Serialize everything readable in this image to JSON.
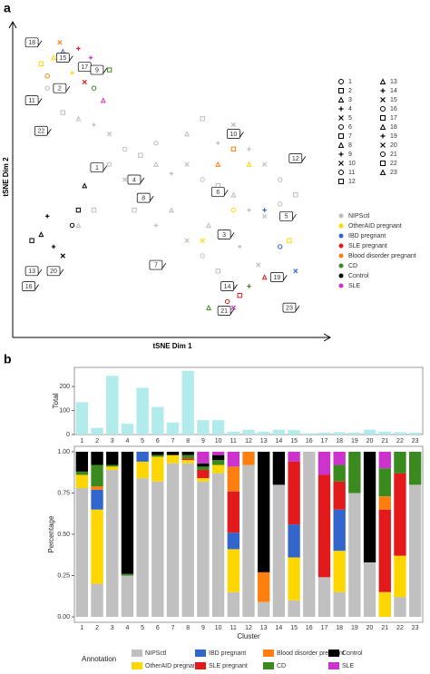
{
  "panels": [
    "a",
    "b"
  ],
  "chart_data": [
    {
      "type": "scatter",
      "xlabel": "tSNE Dim 1",
      "ylabel": "tSNE Dim 2",
      "xlim": [
        0,
        100
      ],
      "ylim": [
        0,
        100
      ],
      "cluster_legend": [
        "1",
        "2",
        "3",
        "4",
        "5",
        "6",
        "7",
        "8",
        "9",
        "10",
        "11",
        "12",
        "13",
        "14",
        "15",
        "16",
        "17",
        "18",
        "19",
        "20",
        "21",
        "22",
        "23"
      ],
      "series": [
        {
          "name": "NIPSctl",
          "color": "#bdbdbd",
          "x": [
            10,
            15,
            20,
            25,
            30,
            35,
            40,
            45,
            50,
            55,
            60,
            65,
            70,
            75,
            80,
            85,
            90,
            50,
            45,
            55,
            60,
            65,
            70,
            40,
            35,
            30,
            25,
            20,
            75,
            80,
            85,
            60,
            55,
            65,
            70,
            45,
            38,
            62,
            72,
            78
          ],
          "y": [
            80,
            72,
            70,
            68,
            65,
            60,
            58,
            55,
            52,
            55,
            50,
            48,
            45,
            40,
            38,
            42,
            45,
            40,
            35,
            30,
            25,
            20,
            15,
            45,
            50,
            55,
            40,
            35,
            60,
            55,
            50,
            70,
            65,
            62,
            68,
            62,
            40,
            35,
            28,
            22
          ]
        },
        {
          "name": "OtherAID pregnant",
          "color": "#ffd700",
          "x": [
            8,
            12,
            18,
            60,
            70,
            88,
            75
          ],
          "y": [
            88,
            90,
            85,
            30,
            40,
            30,
            55
          ]
        },
        {
          "name": "IBD pregnant",
          "color": "#3366cc",
          "x": [
            15,
            80,
            90,
            85
          ],
          "y": [
            92,
            40,
            20,
            28
          ]
        },
        {
          "name": "SLE pregnant",
          "color": "#e31a1c",
          "x": [
            20,
            22,
            68,
            72,
            80
          ],
          "y": [
            93,
            82,
            10,
            12,
            18
          ]
        },
        {
          "name": "Blood disorder pregnant",
          "color": "#ff7f0e",
          "x": [
            14,
            10,
            70,
            65
          ],
          "y": [
            95,
            84,
            60,
            55
          ]
        },
        {
          "name": "CD",
          "color": "#3a8a1f",
          "x": [
            25,
            30,
            62,
            75
          ],
          "y": [
            80,
            86,
            8,
            15
          ]
        },
        {
          "name": "Control",
          "color": "#000000",
          "x": [
            5,
            8,
            12,
            15,
            18,
            20,
            22,
            10
          ],
          "y": [
            30,
            32,
            28,
            25,
            35,
            40,
            48,
            38
          ]
        },
        {
          "name": "SLE",
          "color": "#cc33cc",
          "x": [
            28,
            24,
            70
          ],
          "y": [
            76,
            90,
            8
          ]
        }
      ],
      "annotations": [
        {
          "label": "18",
          "x": 5,
          "y": 95
        },
        {
          "label": "15",
          "x": 15,
          "y": 90
        },
        {
          "label": "17",
          "x": 22,
          "y": 87
        },
        {
          "label": "2",
          "x": 14,
          "y": 80
        },
        {
          "label": "11",
          "x": 5,
          "y": 76
        },
        {
          "label": "22",
          "x": 8,
          "y": 66
        },
        {
          "label": "9",
          "x": 26,
          "y": 86
        },
        {
          "label": "10",
          "x": 70,
          "y": 65
        },
        {
          "label": "12",
          "x": 90,
          "y": 57
        },
        {
          "label": "1",
          "x": 26,
          "y": 54
        },
        {
          "label": "4",
          "x": 38,
          "y": 50
        },
        {
          "label": "8",
          "x": 41,
          "y": 44
        },
        {
          "label": "6",
          "x": 65,
          "y": 46
        },
        {
          "label": "5",
          "x": 87,
          "y": 38
        },
        {
          "label": "3",
          "x": 67,
          "y": 32
        },
        {
          "label": "13",
          "x": 5,
          "y": 20
        },
        {
          "label": "20",
          "x": 12,
          "y": 20
        },
        {
          "label": "16",
          "x": 4,
          "y": 15
        },
        {
          "label": "7",
          "x": 45,
          "y": 22
        },
        {
          "label": "14",
          "x": 68,
          "y": 15
        },
        {
          "label": "19",
          "x": 84,
          "y": 18
        },
        {
          "label": "21",
          "x": 67,
          "y": 7
        },
        {
          "label": "23",
          "x": 88,
          "y": 8
        }
      ]
    },
    {
      "type": "bar",
      "ylabel": "Total",
      "color": "#b2ebeb",
      "categories": [
        "1",
        "2",
        "3",
        "4",
        "5",
        "6",
        "7",
        "8",
        "9",
        "10",
        "11",
        "12",
        "13",
        "14",
        "15",
        "16",
        "17",
        "18",
        "19",
        "20",
        "21",
        "22",
        "23"
      ],
      "values": [
        135,
        28,
        245,
        45,
        195,
        115,
        50,
        265,
        60,
        60,
        12,
        20,
        12,
        20,
        18,
        5,
        8,
        10,
        8,
        20,
        12,
        10,
        8
      ],
      "ylim": [
        0,
        280
      ],
      "yticks": [
        0,
        100,
        200
      ]
    },
    {
      "type": "stacked_bar",
      "xlabel": "Cluster",
      "ylabel": "Percentage",
      "legend_title": "Annotation",
      "categories": [
        "1",
        "2",
        "3",
        "4",
        "5",
        "6",
        "7",
        "8",
        "9",
        "10",
        "11",
        "12",
        "13",
        "14",
        "15",
        "16",
        "17",
        "18",
        "19",
        "20",
        "21",
        "22",
        "23"
      ],
      "ylim": [
        0,
        1
      ],
      "yticks": [
        {
          "value": 0,
          "label": "0.00"
        },
        {
          "value": 0.25,
          "label": "0.25"
        },
        {
          "value": 0.5,
          "label": "0.50"
        },
        {
          "value": 0.75,
          "label": "0.75"
        },
        {
          "value": 1,
          "label": "1.00"
        }
      ],
      "series": [
        {
          "name": "NIPSctl",
          "color": "#c0c0c0",
          "values": [
            0.78,
            0.2,
            0.89,
            0.25,
            0.84,
            0.82,
            0.93,
            0.93,
            0.82,
            0.87,
            0.15,
            0.92,
            0.09,
            0.8,
            0.1,
            1,
            0.24,
            0.15,
            0.75,
            0.33,
            0,
            0.12,
            0.8
          ]
        },
        {
          "name": "OtherAID pregnant",
          "color": "#ffd700",
          "values": [
            0.08,
            0.45,
            0.02,
            0,
            0.1,
            0.15,
            0.05,
            0.02,
            0.02,
            0.05,
            0.26,
            0,
            0,
            0,
            0.26,
            0,
            0,
            0.25,
            0,
            0,
            0.15,
            0.25,
            0
          ]
        },
        {
          "name": "IBD pregnant",
          "color": "#3366cc",
          "values": [
            0,
            0.12,
            0,
            0,
            0.06,
            0,
            0,
            0,
            0,
            0,
            0.1,
            0,
            0,
            0,
            0.2,
            0,
            0,
            0.25,
            0,
            0,
            0,
            0,
            0
          ]
        },
        {
          "name": "SLE pregnant",
          "color": "#e31a1c",
          "values": [
            0,
            0,
            0,
            0,
            0,
            0,
            0,
            0.01,
            0.05,
            0,
            0.25,
            0,
            0,
            0,
            0.38,
            0,
            0.62,
            0.17,
            0,
            0,
            0.5,
            0.5,
            0
          ]
        },
        {
          "name": "Blood disorder pregnant",
          "color": "#ff7f0e",
          "values": [
            0,
            0.02,
            0,
            0,
            0,
            0,
            0,
            0,
            0,
            0,
            0.15,
            0.08,
            0.18,
            0,
            0,
            0,
            0,
            0,
            0,
            0,
            0.08,
            0,
            0
          ]
        },
        {
          "name": "CD",
          "color": "#3a8a1f",
          "values": [
            0.02,
            0.13,
            0.01,
            0.01,
            0,
            0.01,
            0,
            0.02,
            0.02,
            0.03,
            0,
            0,
            0,
            0,
            0,
            0,
            0,
            0.1,
            0.25,
            0,
            0.17,
            0.13,
            0.2
          ]
        },
        {
          "name": "Control",
          "color": "#000000",
          "values": [
            0.12,
            0.08,
            0.08,
            0.74,
            0,
            0.02,
            0.02,
            0.02,
            0.02,
            0.03,
            0,
            0,
            0.73,
            0.2,
            0,
            0,
            0,
            0,
            0,
            0.67,
            0,
            0,
            0
          ]
        },
        {
          "name": "SLE",
          "color": "#cc33cc",
          "values": [
            0,
            0,
            0,
            0,
            0,
            0,
            0,
            0,
            0.07,
            0.02,
            0.09,
            0,
            0,
            0,
            0.06,
            0,
            0.14,
            0.08,
            0,
            0,
            0.1,
            0,
            0
          ]
        }
      ]
    }
  ]
}
